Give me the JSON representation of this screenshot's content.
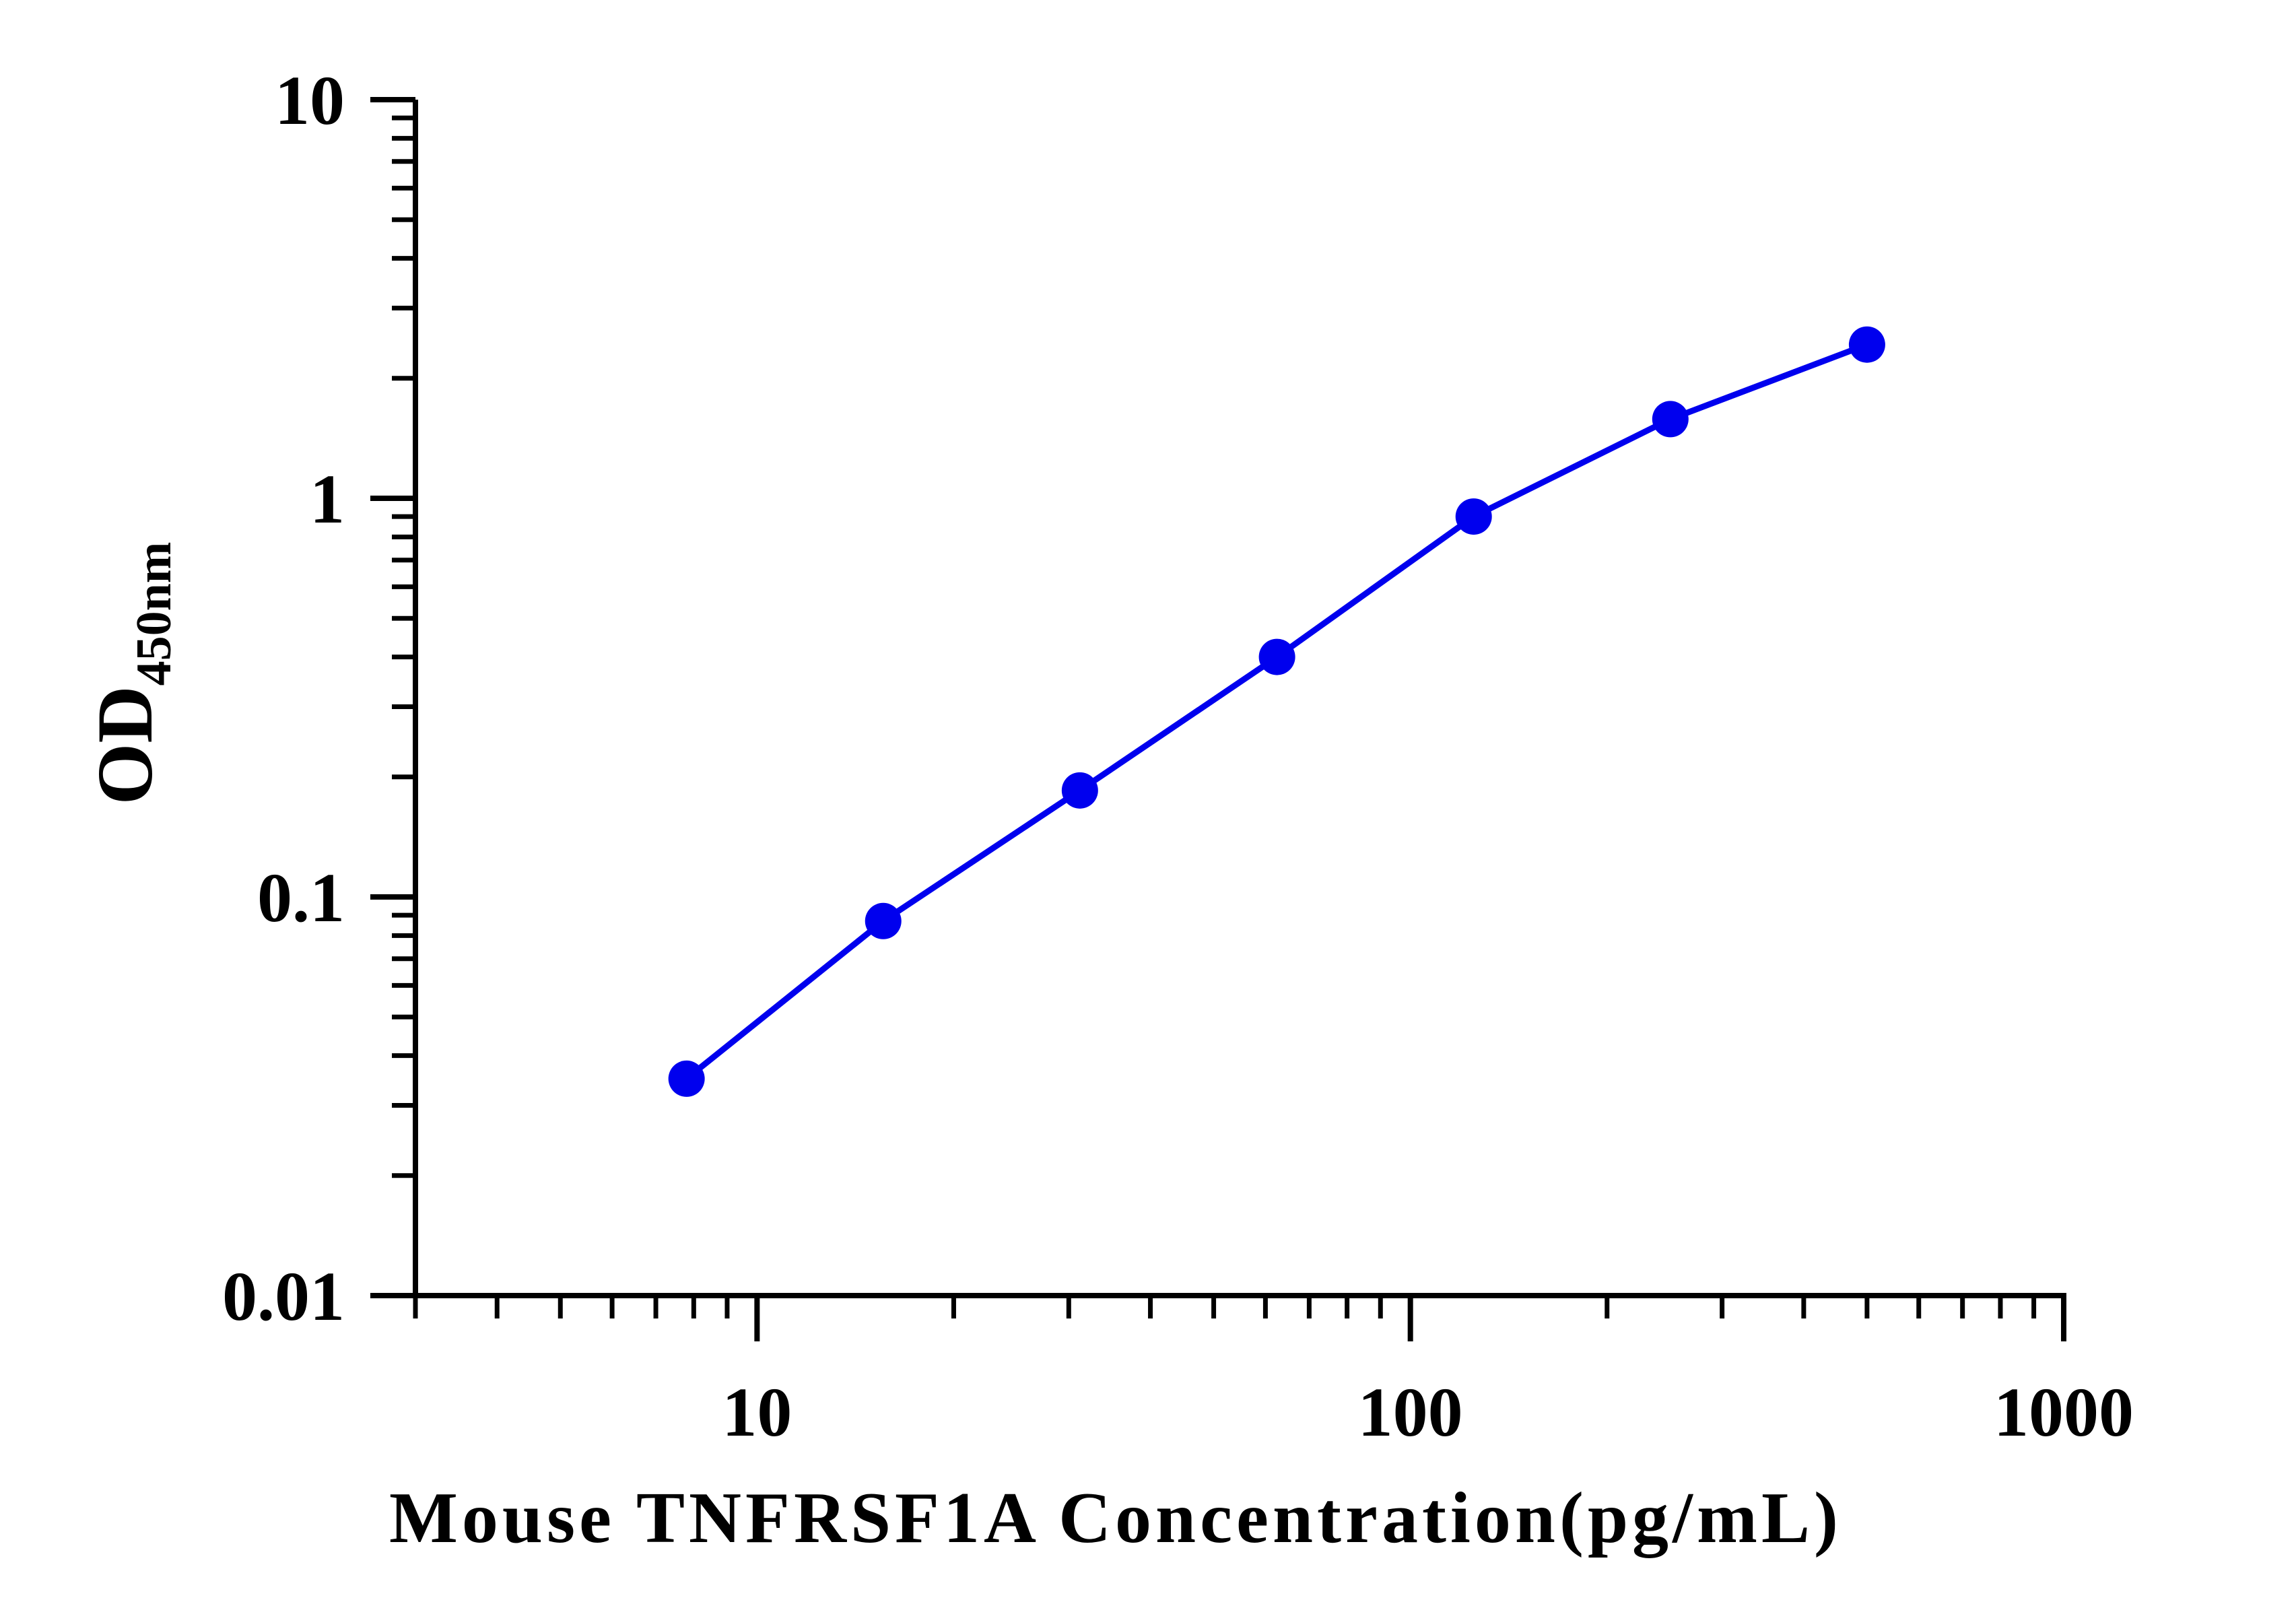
{
  "chart_data": {
    "type": "line",
    "title": "",
    "xlabel": "Mouse TNFRSF1A Concentration(pg/mL)",
    "ylabel": {
      "main": "OD",
      "subscript": "450nm"
    },
    "x_scale": "log",
    "y_scale": "log",
    "xlim": [
      3,
      1000
    ],
    "ylim": [
      0.01,
      10
    ],
    "x_ticks": [
      {
        "value": 10,
        "label": "10"
      },
      {
        "value": 100,
        "label": "100"
      },
      {
        "value": 1000,
        "label": "1000"
      }
    ],
    "y_ticks": [
      {
        "value": 0.01,
        "label": "0.01"
      },
      {
        "value": 0.1,
        "label": "0.1"
      },
      {
        "value": 1,
        "label": "1"
      },
      {
        "value": 10,
        "label": "10"
      }
    ],
    "grid": false,
    "legend": "none",
    "series": [
      {
        "color": "#0000ee",
        "marker": "circle",
        "points": [
          {
            "x": 7.8,
            "y": 0.035
          },
          {
            "x": 15.6,
            "y": 0.087
          },
          {
            "x": 31.2,
            "y": 0.185
          },
          {
            "x": 62.5,
            "y": 0.4
          },
          {
            "x": 125,
            "y": 0.9
          },
          {
            "x": 250,
            "y": 1.58
          },
          {
            "x": 500,
            "y": 2.43
          }
        ]
      }
    ]
  }
}
